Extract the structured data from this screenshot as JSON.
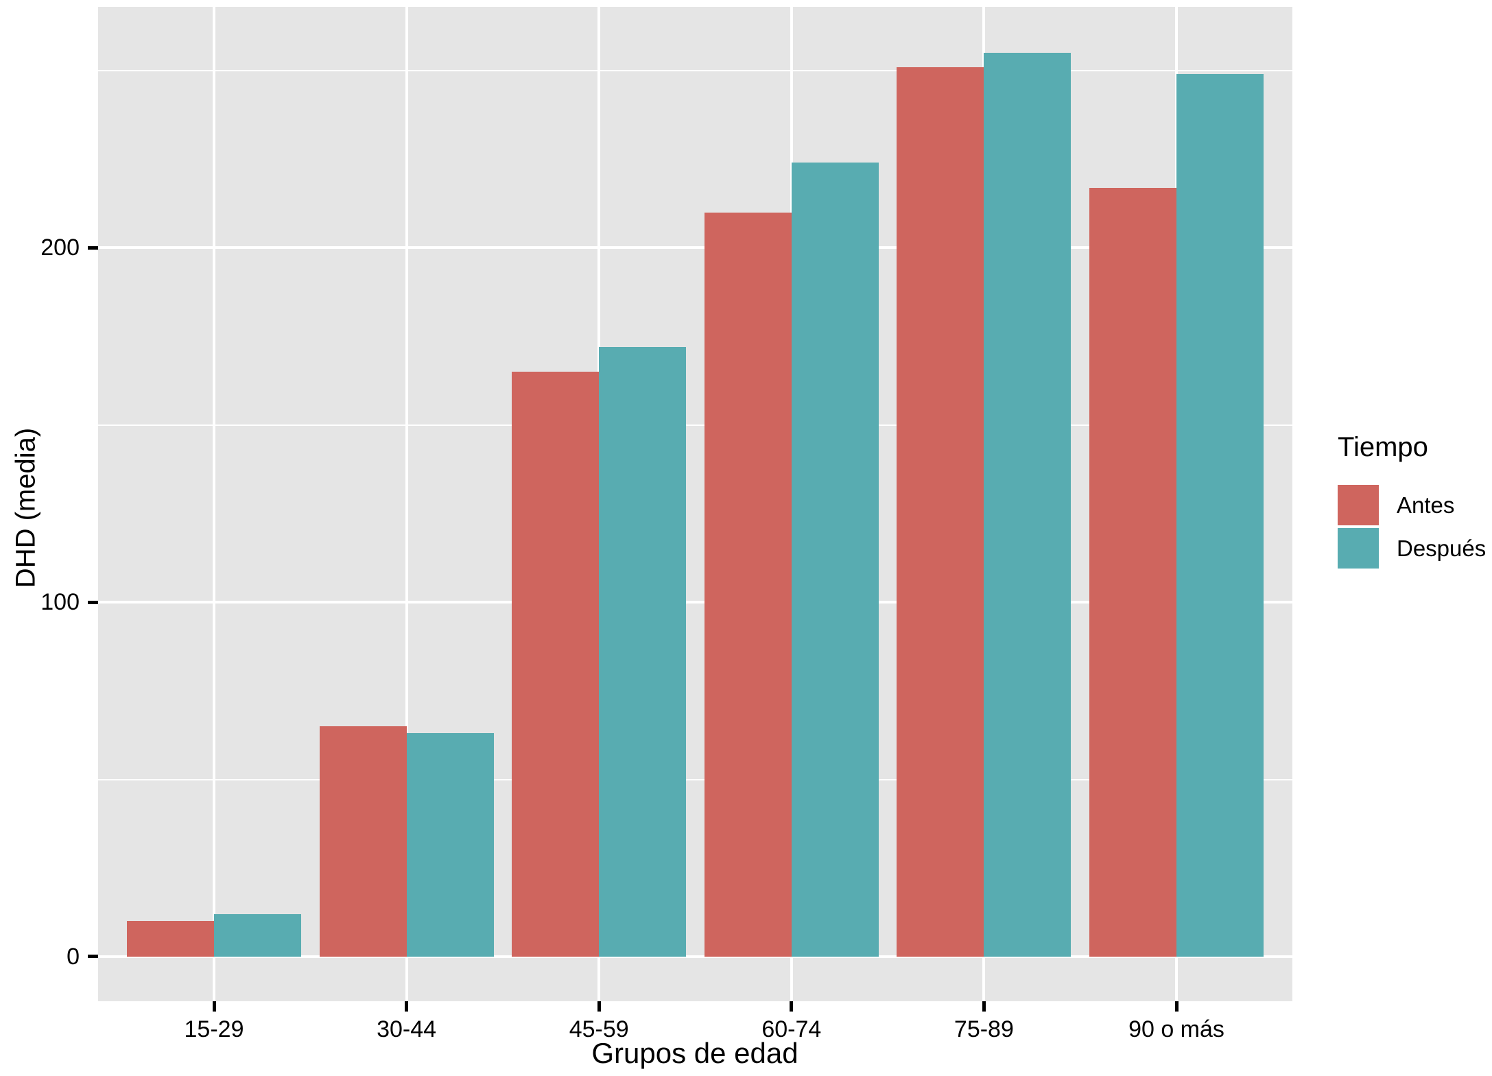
{
  "chart_data": {
    "type": "bar",
    "title": "",
    "xlabel": "Grupos de edad",
    "ylabel": "DHD (media)",
    "legend_title": "Tiempo",
    "legend_position": "right",
    "grid": true,
    "panel_bg": "#E5E5E5",
    "grid_color": "#FFFFFF",
    "text_color": "#000000",
    "categories": [
      "15-29",
      "30-44",
      "45-59",
      "60-74",
      "75-89",
      "90 o más"
    ],
    "series": [
      {
        "name": "Antes",
        "color": "#CF655E",
        "values": [
          10,
          65,
          165,
          210,
          251,
          217
        ]
      },
      {
        "name": "Después",
        "color": "#58ACB1",
        "values": [
          12,
          63,
          172,
          224,
          255,
          249
        ]
      }
    ],
    "y_major_ticks": [
      0,
      100,
      200
    ],
    "y_major_tick_labels": [
      "0",
      "100",
      "200"
    ],
    "y_minor_ticks": [
      50,
      150,
      250
    ],
    "ylim": [
      -12.6,
      268
    ]
  }
}
